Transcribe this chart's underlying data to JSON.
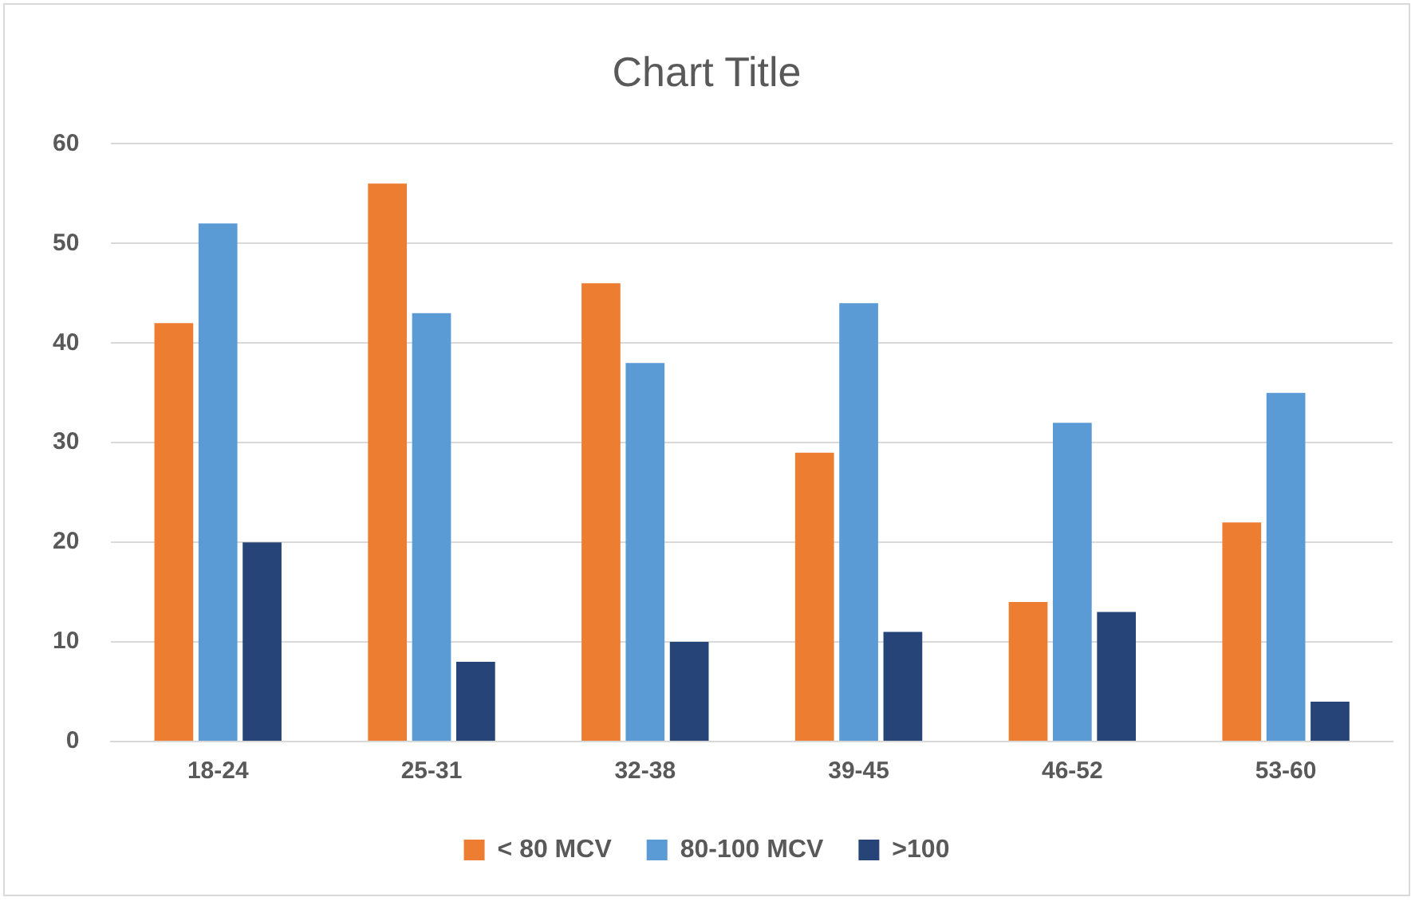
{
  "chart_data": {
    "type": "bar",
    "title": "Chart Title",
    "categories": [
      "18-24",
      "25-31",
      "32-38",
      "39-45",
      "46-52",
      "53-60"
    ],
    "series": [
      {
        "name": "< 80 MCV",
        "color": "#ed7d31",
        "values": [
          42,
          56,
          46,
          29,
          14,
          22
        ]
      },
      {
        "name": "80-100 MCV",
        "color": "#5b9bd5",
        "values": [
          52,
          43,
          38,
          44,
          32,
          35
        ]
      },
      {
        "name": ">100",
        "color": "#264478",
        "values": [
          20,
          8,
          10,
          11,
          13,
          4
        ]
      }
    ],
    "ylim": [
      0,
      60
    ],
    "yticks": [
      0,
      10,
      20,
      30,
      40,
      50,
      60
    ],
    "grid": "y",
    "legend": "bottom"
  }
}
